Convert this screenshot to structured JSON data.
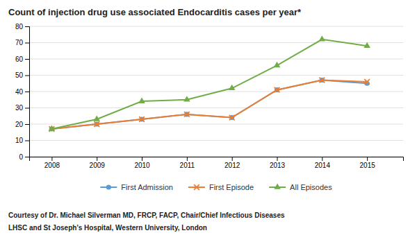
{
  "chart_data": {
    "type": "line",
    "title": "Count of injection drug use associated Endocarditis cases per year*",
    "x": [
      2008,
      2009,
      2010,
      2011,
      2012,
      2013,
      2014,
      2015
    ],
    "series": [
      {
        "name": "First Admission",
        "color": "#5B9BD5",
        "marker": "circle",
        "values": [
          17,
          20,
          23,
          26,
          24,
          41,
          47,
          45
        ]
      },
      {
        "name": "First Episode",
        "color": "#ED7D31",
        "marker": "x",
        "values": [
          17,
          20,
          23,
          26,
          24,
          41,
          47,
          46
        ]
      },
      {
        "name": "All Episodes",
        "color": "#70AD47",
        "marker": "triangle",
        "values": [
          17,
          23,
          34,
          35,
          42,
          56,
          72,
          68
        ]
      }
    ],
    "xlim": [
      2007.5,
      2015.8
    ],
    "xticks": [
      2008,
      2009,
      2010,
      2011,
      2012,
      2013,
      2014,
      2015
    ],
    "ylim": [
      0,
      80
    ],
    "yticks": [
      0,
      10,
      20,
      30,
      40,
      50,
      60,
      70,
      80
    ],
    "grid": true,
    "legend": "bottom",
    "annotations": [
      "Courtesy of Dr. Michael Silverman MD, FRCP, FACP, Chair/Chief Infectious Diseases",
      "LHSC and St Joseph’s Hospital, Western University, London"
    ]
  }
}
